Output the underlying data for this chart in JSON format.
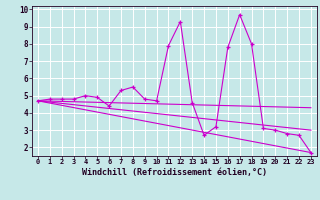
{
  "xlabel": "Windchill (Refroidissement éolien,°C)",
  "bg_color": "#c6e8e8",
  "line_color": "#cc00cc",
  "grid_color": "#b0d8d8",
  "x_min": -0.5,
  "x_max": 23.5,
  "y_min": 1.5,
  "y_max": 10.2,
  "series1_x": [
    0,
    1,
    2,
    3,
    4,
    5,
    6,
    7,
    8,
    9,
    10,
    11,
    12,
    13,
    14,
    15,
    16,
    17,
    18,
    19,
    20,
    21,
    22,
    23
  ],
  "series1_y": [
    4.7,
    4.8,
    4.8,
    4.8,
    5.0,
    4.9,
    4.4,
    5.3,
    5.5,
    4.8,
    4.7,
    7.9,
    9.3,
    4.6,
    2.7,
    3.2,
    7.8,
    9.7,
    8.0,
    3.1,
    3.0,
    2.8,
    2.7,
    1.7
  ],
  "series2_x": [
    0,
    23
  ],
  "series2_y": [
    4.7,
    1.7
  ],
  "series3_x": [
    0,
    23
  ],
  "series3_y": [
    4.7,
    3.0
  ],
  "series4_x": [
    0,
    23
  ],
  "series4_y": [
    4.7,
    4.3
  ],
  "x_ticks": [
    0,
    1,
    2,
    3,
    4,
    5,
    6,
    7,
    8,
    9,
    10,
    11,
    12,
    13,
    14,
    15,
    16,
    17,
    18,
    19,
    20,
    21,
    22,
    23
  ],
  "y_ticks": [
    2,
    3,
    4,
    5,
    6,
    7,
    8,
    9,
    10
  ]
}
